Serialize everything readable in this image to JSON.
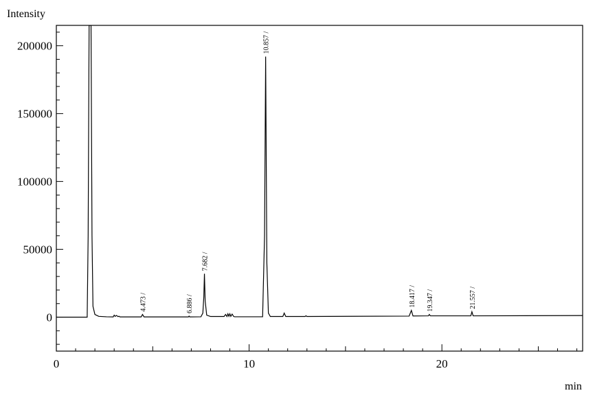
{
  "chart_data": {
    "type": "line",
    "title": "",
    "xlabel": "min",
    "ylabel": "Intensity",
    "xlim": [
      0,
      27.3
    ],
    "ylim": [
      -25000,
      215000
    ],
    "x_ticks": [
      0,
      10,
      20
    ],
    "x_tick_labels": [
      "0",
      "10",
      "20"
    ],
    "y_ticks": [
      0,
      50000,
      100000,
      150000,
      200000
    ],
    "y_tick_labels": [
      "0",
      "50000",
      "100000",
      "150000",
      "200000"
    ],
    "grid": false,
    "line_color": "#000000",
    "series": [
      {
        "x": [
          0.0,
          1.6,
          1.65,
          1.7,
          1.75,
          1.8,
          1.85,
          1.9,
          2.0,
          2.2,
          2.6,
          2.95,
          3.0,
          3.05,
          3.12,
          3.2,
          3.25,
          3.3,
          3.5,
          4.4,
          4.47,
          4.55,
          4.7,
          6.85,
          6.886,
          6.92,
          7.5,
          7.6,
          7.65,
          7.682,
          7.72,
          7.8,
          8.0,
          8.7,
          8.78,
          8.85,
          8.9,
          8.95,
          9.0,
          9.05,
          9.12,
          9.2,
          9.25,
          10.7,
          10.8,
          10.857,
          10.92,
          11.0,
          11.1,
          11.75,
          11.82,
          11.9,
          12.9,
          12.95,
          13.0,
          18.3,
          18.417,
          18.5,
          19.3,
          19.347,
          19.4,
          21.5,
          21.557,
          21.62,
          27.3
        ],
        "y": [
          0,
          0,
          60000,
          215000,
          215000,
          215000,
          60000,
          8000,
          2000,
          600,
          300,
          200,
          1500,
          600,
          1300,
          400,
          700,
          200,
          200,
          200,
          2000,
          200,
          200,
          200,
          800,
          200,
          300,
          3000,
          15000,
          32000,
          12000,
          1500,
          500,
          500,
          2000,
          500,
          2500,
          600,
          2500,
          600,
          2300,
          500,
          300,
          300,
          60000,
          192000,
          40000,
          3000,
          500,
          500,
          3000,
          500,
          500,
          1000,
          500,
          800,
          5000,
          900,
          1000,
          2000,
          1000,
          1000,
          4000,
          1000,
          1200
        ]
      }
    ],
    "peak_labels": [
      {
        "x": 4.473,
        "label": "4.473 /",
        "y": 2000
      },
      {
        "x": 6.886,
        "label": "6.886 /",
        "y": 800
      },
      {
        "x": 7.682,
        "label": "7.682 /",
        "y": 32000
      },
      {
        "x": 10.857,
        "label": "10.857 /",
        "y": 192000
      },
      {
        "x": 18.417,
        "label": "18.417 /",
        "y": 5000
      },
      {
        "x": 19.347,
        "label": "19.347 /",
        "y": 2000
      },
      {
        "x": 21.557,
        "label": "21.557 /",
        "y": 4000
      }
    ]
  }
}
